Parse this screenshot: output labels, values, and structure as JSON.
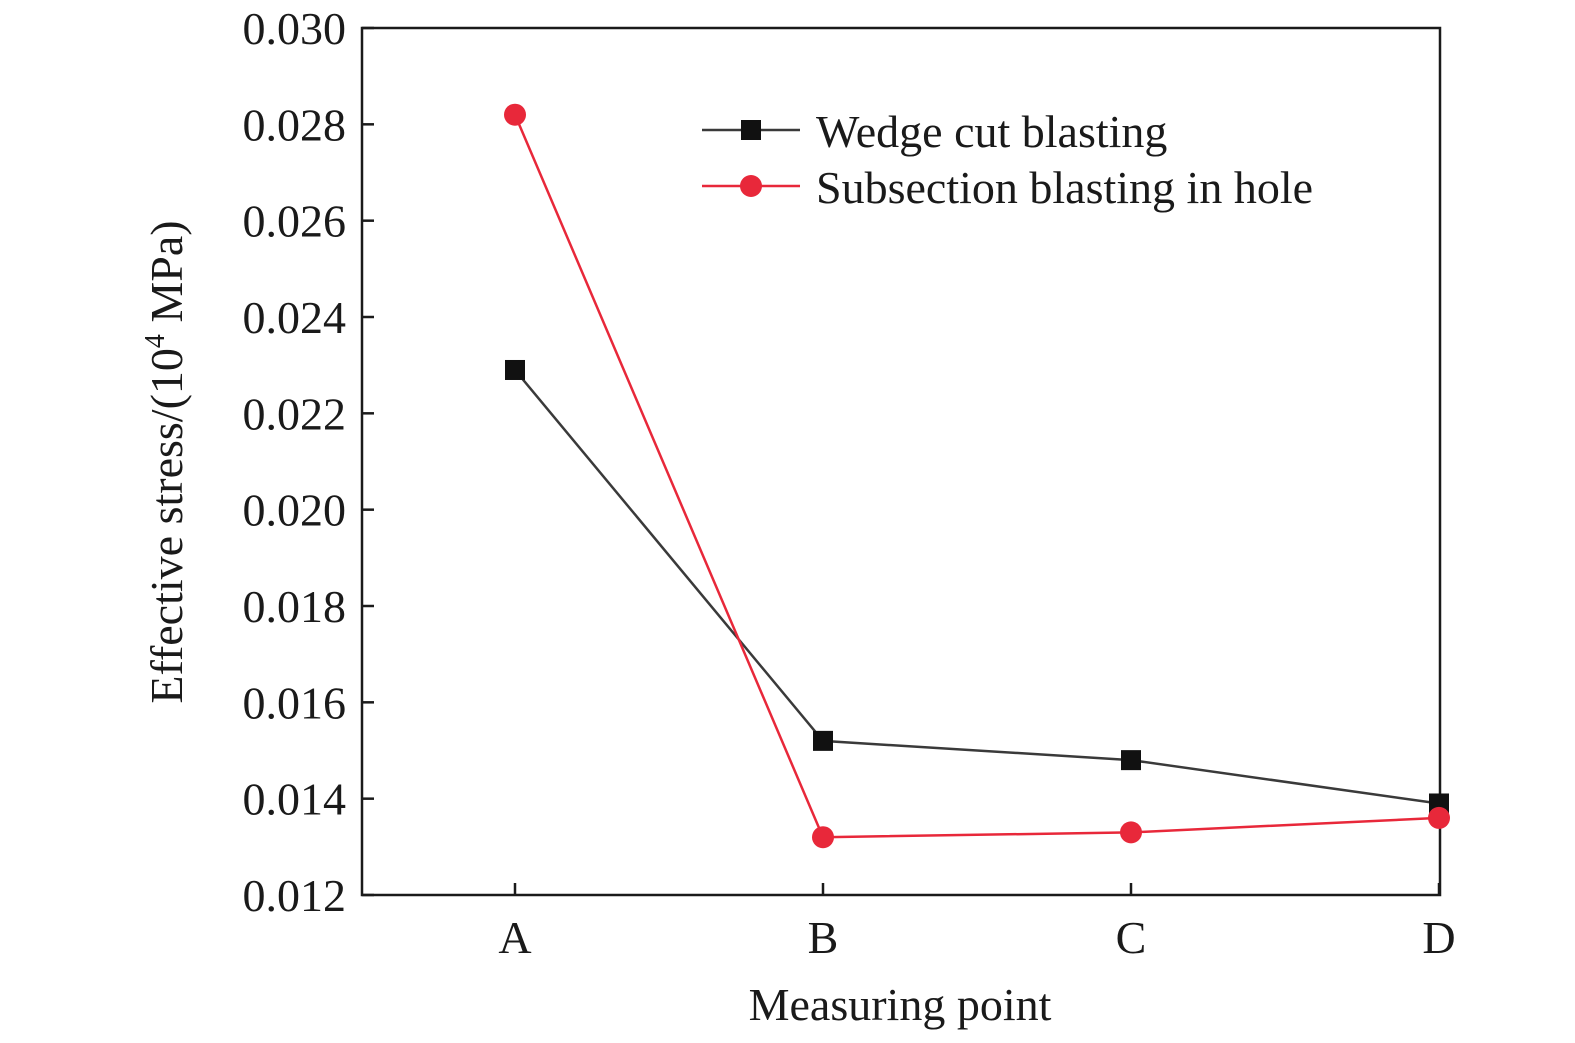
{
  "chart_data": {
    "type": "line",
    "title": "",
    "xlabel": "Measuring point",
    "ylabel_prefix": "Effective stress/(10",
    "ylabel_superscript": "4",
    "ylabel_suffix": " MPa)",
    "categories": [
      "A",
      "B",
      "C",
      "D"
    ],
    "ylim": [
      0.012,
      0.03
    ],
    "yticks": [
      "0.012",
      "0.014",
      "0.016",
      "0.018",
      "0.020",
      "0.022",
      "0.024",
      "0.026",
      "0.028",
      "0.030"
    ],
    "grid": false,
    "legend_position": "top-right",
    "series": [
      {
        "name": "Wedge cut blasting",
        "values": [
          0.0229,
          0.0152,
          0.0148,
          0.0139
        ],
        "color": "#3a3a3a",
        "marker": "square"
      },
      {
        "name": "Subsection blasting in hole",
        "values": [
          0.0282,
          0.0132,
          0.0133,
          0.0136
        ],
        "color": "#e8283a",
        "marker": "circle"
      }
    ]
  }
}
